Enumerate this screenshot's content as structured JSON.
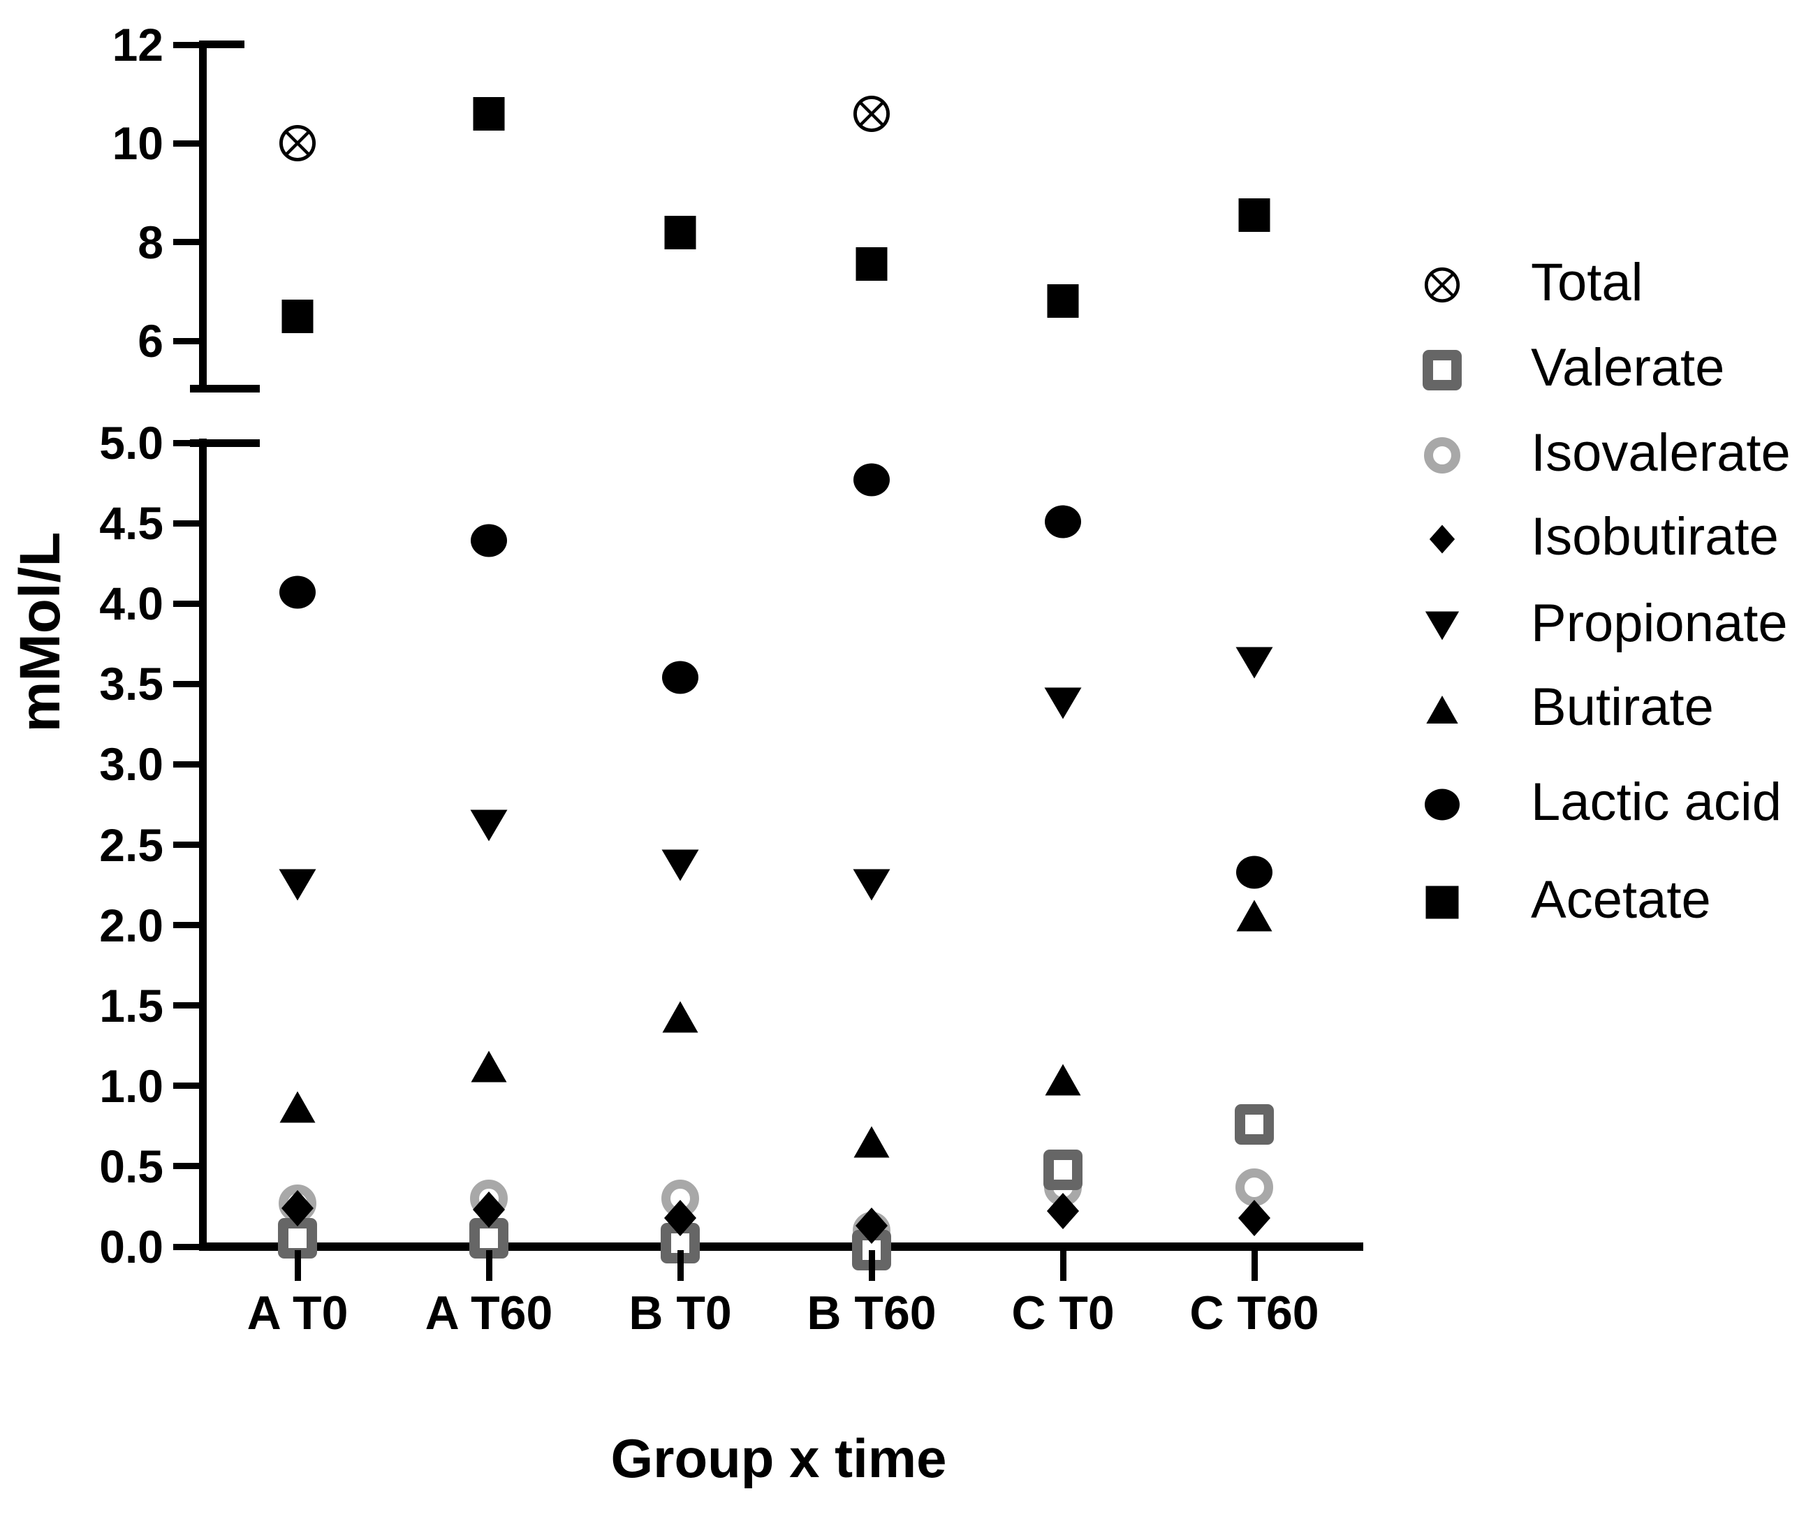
{
  "figure": {
    "background": "#ffffff",
    "ink_color": "#000000",
    "valerate_gray": "#666666",
    "isovalerate_gray": "#a8a8a8"
  },
  "chart_data": {
    "type": "scatter",
    "title": "",
    "xlabel": "Group x time",
    "ylabel": "mMol/L",
    "categories": [
      "A T0",
      "A T60",
      "B T0",
      "B T60",
      "C T0",
      "C T60"
    ],
    "grid": false,
    "legend_position": "right",
    "y_axis_broken": true,
    "y_axis_top_segment": {
      "range": [
        5.1,
        12.4
      ],
      "tick_values": [
        12,
        10,
        8,
        6
      ],
      "tick_labels": [
        "12",
        "10",
        "8",
        "6"
      ]
    },
    "y_axis_bottom_segment": {
      "range": [
        0,
        5.0
      ],
      "tick_values": [
        5,
        4.5,
        4,
        3.5,
        3,
        2.5,
        2,
        1.5,
        1,
        0.5,
        0
      ],
      "tick_labels": [
        "5.0",
        "4.5",
        "4.0",
        "3.5",
        "3.0",
        "2.5",
        "2.0",
        "1.5",
        "1.0",
        "0.5",
        "0.0"
      ]
    },
    "series": [
      {
        "name": "Total",
        "marker": "circle-x",
        "color": "#000000",
        "values": [
          10.0,
          null,
          null,
          10.6,
          null,
          null
        ]
      },
      {
        "name": "Valerate",
        "marker": "open-square",
        "color": "#666666",
        "values": [
          0.05,
          0.05,
          0.02,
          -0.02,
          0.48,
          0.76
        ]
      },
      {
        "name": "Isovalerate",
        "marker": "open-circle",
        "color": "#a8a8a8",
        "values": [
          0.27,
          0.3,
          0.3,
          0.1,
          0.37,
          0.37
        ]
      },
      {
        "name": "Isobutirate",
        "marker": "diamond",
        "color": "#000000",
        "values": [
          0.24,
          0.23,
          0.18,
          0.13,
          0.22,
          0.18
        ]
      },
      {
        "name": "Propionate",
        "marker": "triangle-down",
        "color": "#000000",
        "values": [
          2.25,
          2.62,
          2.37,
          2.25,
          3.38,
          3.63
        ]
      },
      {
        "name": "Butirate",
        "marker": "triangle-up",
        "color": "#000000",
        "values": [
          0.87,
          1.12,
          1.43,
          0.65,
          1.04,
          2.06
        ]
      },
      {
        "name": "Lactic acid",
        "marker": "circle-filled",
        "color": "#000000",
        "values": [
          4.07,
          4.39,
          3.54,
          4.77,
          4.51,
          2.33
        ]
      },
      {
        "name": "Acetate",
        "marker": "square-filled",
        "color": "#000000",
        "values": [
          6.5,
          10.6,
          8.2,
          7.55,
          6.8,
          8.55
        ]
      }
    ]
  }
}
